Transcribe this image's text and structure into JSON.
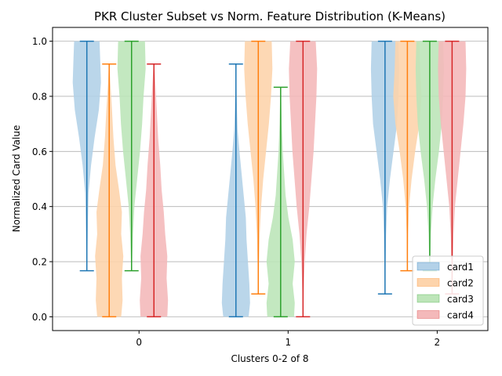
{
  "chart_data": {
    "type": "violin",
    "title": "PKR Cluster Subset vs Norm. Feature Distribution (K-Means)",
    "xlabel": "Clusters 0-2 of 8",
    "ylabel": "Normalized Card Value",
    "ylim": [
      -0.05,
      1.05
    ],
    "y_ticks": [
      "0.0",
      "0.2",
      "0.4",
      "0.6",
      "0.8",
      "1.0"
    ],
    "y_tick_values": [
      0.0,
      0.2,
      0.4,
      0.6,
      0.8,
      1.0
    ],
    "categories": [
      "0",
      "1",
      "2"
    ],
    "grid": "horizontal",
    "legend_position": "lower-right",
    "series": [
      {
        "name": "card1",
        "fill": "#b3d1e8",
        "stroke": "#1f77b4",
        "groups": [
          {
            "offset": -0.35,
            "min": 0.167,
            "max": 1.0,
            "profile": [
              [
                0.17,
                0.02
              ],
              [
                0.3,
                0.06
              ],
              [
                0.45,
                0.12
              ],
              [
                0.55,
                0.3
              ],
              [
                0.65,
                0.55
              ],
              [
                0.75,
                0.85
              ],
              [
                0.85,
                1.0
              ],
              [
                0.93,
                0.95
              ],
              [
                1.0,
                0.9
              ]
            ]
          },
          {
            "offset": -0.35,
            "min": 0.0,
            "max": 0.917,
            "profile": [
              [
                0.0,
                0.9
              ],
              [
                0.05,
                1.0
              ],
              [
                0.12,
                0.95
              ],
              [
                0.2,
                0.85
              ],
              [
                0.28,
                0.75
              ],
              [
                0.36,
                0.7
              ],
              [
                0.44,
                0.55
              ],
              [
                0.52,
                0.4
              ],
              [
                0.6,
                0.25
              ],
              [
                0.68,
                0.12
              ],
              [
                0.8,
                0.05
              ],
              [
                0.92,
                0.02
              ]
            ]
          },
          {
            "offset": -0.35,
            "min": 0.083,
            "max": 1.0,
            "profile": [
              [
                0.09,
                0.02
              ],
              [
                0.2,
                0.04
              ],
              [
                0.3,
                0.08
              ],
              [
                0.4,
                0.15
              ],
              [
                0.5,
                0.35
              ],
              [
                0.6,
                0.6
              ],
              [
                0.7,
                0.85
              ],
              [
                0.8,
                0.95
              ],
              [
                0.9,
                1.0
              ],
              [
                1.0,
                0.95
              ]
            ]
          }
        ]
      },
      {
        "name": "card2",
        "fill": "#fdd4ac",
        "stroke": "#ff7f0e",
        "groups": [
          {
            "offset": -0.2,
            "min": 0.0,
            "max": 0.917,
            "profile": [
              [
                0.0,
                0.85
              ],
              [
                0.06,
                0.95
              ],
              [
                0.14,
                0.9
              ],
              [
                0.22,
                1.0
              ],
              [
                0.3,
                0.85
              ],
              [
                0.38,
                0.9
              ],
              [
                0.46,
                0.7
              ],
              [
                0.55,
                0.45
              ],
              [
                0.65,
                0.3
              ],
              [
                0.75,
                0.2
              ],
              [
                0.85,
                0.08
              ],
              [
                0.92,
                0.02
              ]
            ]
          },
          {
            "offset": -0.2,
            "min": 0.083,
            "max": 1.0,
            "profile": [
              [
                0.09,
                0.02
              ],
              [
                0.2,
                0.05
              ],
              [
                0.3,
                0.1
              ],
              [
                0.4,
                0.2
              ],
              [
                0.5,
                0.35
              ],
              [
                0.6,
                0.55
              ],
              [
                0.7,
                0.75
              ],
              [
                0.8,
                0.9
              ],
              [
                0.9,
                1.0
              ],
              [
                1.0,
                0.95
              ]
            ]
          },
          {
            "offset": -0.2,
            "min": 0.167,
            "max": 1.0,
            "profile": [
              [
                0.17,
                0.02
              ],
              [
                0.3,
                0.05
              ],
              [
                0.4,
                0.12
              ],
              [
                0.5,
                0.3
              ],
              [
                0.6,
                0.55
              ],
              [
                0.7,
                0.85
              ],
              [
                0.8,
                1.0
              ],
              [
                0.9,
                0.9
              ],
              [
                1.0,
                0.85
              ]
            ]
          }
        ]
      },
      {
        "name": "card3",
        "fill": "#bde5b9",
        "stroke": "#2ca02c",
        "groups": [
          {
            "offset": -0.05,
            "min": 0.167,
            "max": 1.0,
            "profile": [
              [
                0.17,
                0.02
              ],
              [
                0.3,
                0.1
              ],
              [
                0.4,
                0.2
              ],
              [
                0.5,
                0.4
              ],
              [
                0.6,
                0.6
              ],
              [
                0.7,
                0.75
              ],
              [
                0.8,
                0.85
              ],
              [
                0.9,
                1.0
              ],
              [
                1.0,
                0.95
              ]
            ]
          },
          {
            "offset": -0.05,
            "min": 0.0,
            "max": 0.833,
            "profile": [
              [
                0.0,
                0.95
              ],
              [
                0.05,
                1.0
              ],
              [
                0.12,
                0.85
              ],
              [
                0.2,
                1.0
              ],
              [
                0.28,
                0.85
              ],
              [
                0.36,
                0.55
              ],
              [
                0.44,
                0.35
              ],
              [
                0.52,
                0.25
              ],
              [
                0.6,
                0.15
              ],
              [
                0.7,
                0.08
              ],
              [
                0.83,
                0.02
              ]
            ]
          },
          {
            "offset": -0.05,
            "min": 0.167,
            "max": 1.0,
            "profile": [
              [
                0.17,
                0.02
              ],
              [
                0.3,
                0.08
              ],
              [
                0.4,
                0.2
              ],
              [
                0.5,
                0.4
              ],
              [
                0.6,
                0.65
              ],
              [
                0.7,
                0.85
              ],
              [
                0.8,
                0.95
              ],
              [
                0.9,
                1.0
              ],
              [
                1.0,
                0.95
              ]
            ]
          }
        ]
      },
      {
        "name": "card4",
        "fill": "#f4b9ba",
        "stroke": "#d62728",
        "groups": [
          {
            "offset": 0.1,
            "min": 0.0,
            "max": 0.917,
            "profile": [
              [
                0.0,
                0.95
              ],
              [
                0.06,
                1.0
              ],
              [
                0.14,
                0.9
              ],
              [
                0.22,
                0.95
              ],
              [
                0.3,
                0.8
              ],
              [
                0.38,
                0.7
              ],
              [
                0.46,
                0.55
              ],
              [
                0.55,
                0.45
              ],
              [
                0.65,
                0.3
              ],
              [
                0.75,
                0.2
              ],
              [
                0.85,
                0.1
              ],
              [
                0.92,
                0.02
              ]
            ]
          },
          {
            "offset": 0.1,
            "min": 0.0,
            "max": 1.0,
            "profile": [
              [
                0.0,
                0.02
              ],
              [
                0.1,
                0.05
              ],
              [
                0.2,
                0.12
              ],
              [
                0.3,
                0.25
              ],
              [
                0.4,
                0.45
              ],
              [
                0.5,
                0.6
              ],
              [
                0.6,
                0.75
              ],
              [
                0.7,
                0.85
              ],
              [
                0.8,
                0.95
              ],
              [
                0.9,
                1.0
              ],
              [
                1.0,
                0.9
              ]
            ]
          },
          {
            "offset": 0.1,
            "min": 0.083,
            "max": 1.0,
            "profile": [
              [
                0.09,
                0.02
              ],
              [
                0.2,
                0.05
              ],
              [
                0.3,
                0.1
              ],
              [
                0.4,
                0.2
              ],
              [
                0.5,
                0.4
              ],
              [
                0.6,
                0.6
              ],
              [
                0.7,
                0.8
              ],
              [
                0.8,
                0.95
              ],
              [
                0.9,
                1.0
              ],
              [
                1.0,
                0.95
              ]
            ]
          }
        ]
      }
    ]
  }
}
